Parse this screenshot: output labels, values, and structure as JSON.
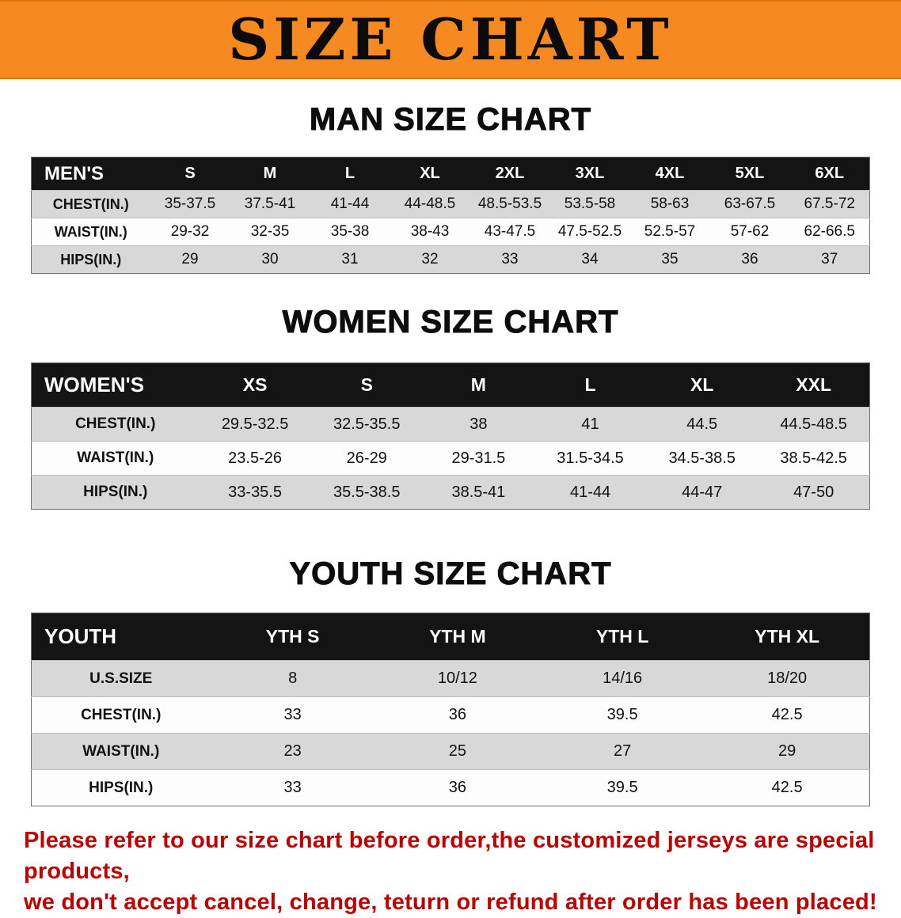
{
  "banner": {
    "title": "SIZE CHART"
  },
  "chart_data": [
    {
      "type": "table",
      "title": "MAN SIZE CHART",
      "corner": "MEN'S",
      "columns": [
        "S",
        "M",
        "L",
        "XL",
        "2XL",
        "3XL",
        "4XL",
        "5XL",
        "6XL"
      ],
      "rows": [
        {
          "label": "CHEST(IN.)",
          "values": [
            "35-37.5",
            "37.5-41",
            "41-44",
            "44-48.5",
            "48.5-53.5",
            "53.5-58",
            "58-63",
            "63-67.5",
            "67.5-72"
          ]
        },
        {
          "label": "WAIST(IN.)",
          "values": [
            "29-32",
            "32-35",
            "35-38",
            "38-43",
            "43-47.5",
            "47.5-52.5",
            "52.5-57",
            "57-62",
            "62-66.5"
          ]
        },
        {
          "label": "HIPS(IN.)",
          "values": [
            "29",
            "30",
            "31",
            "32",
            "33",
            "34",
            "35",
            "36",
            "37"
          ]
        }
      ]
    },
    {
      "type": "table",
      "title": "WOMEN SIZE CHART",
      "corner": "WOMEN'S",
      "columns": [
        "XS",
        "S",
        "M",
        "L",
        "XL",
        "XXL"
      ],
      "rows": [
        {
          "label": "CHEST(IN.)",
          "values": [
            "29.5-32.5",
            "32.5-35.5",
            "38",
            "41",
            "44.5",
            "44.5-48.5"
          ]
        },
        {
          "label": "WAIST(IN.)",
          "values": [
            "23.5-26",
            "26-29",
            "29-31.5",
            "31.5-34.5",
            "34.5-38.5",
            "38.5-42.5"
          ]
        },
        {
          "label": "HIPS(IN.)",
          "values": [
            "33-35.5",
            "35.5-38.5",
            "38.5-41",
            "41-44",
            "44-47",
            "47-50"
          ]
        }
      ]
    },
    {
      "type": "table",
      "title": "YOUTH SIZE CHART",
      "corner": "YOUTH",
      "columns": [
        "YTH S",
        "YTH M",
        "YTH L",
        "YTH XL"
      ],
      "rows": [
        {
          "label": "U.S.SIZE",
          "values": [
            "8",
            "10/12",
            "14/16",
            "18/20"
          ]
        },
        {
          "label": "CHEST(IN.)",
          "values": [
            "33",
            "36",
            "39.5",
            "42.5"
          ]
        },
        {
          "label": "WAIST(IN.)",
          "values": [
            "23",
            "25",
            "27",
            "29"
          ]
        },
        {
          "label": "HIPS(IN.)",
          "values": [
            "33",
            "36",
            "39.5",
            "42.5"
          ]
        }
      ]
    }
  ],
  "footer": {
    "line1": "Please refer to our size chart before order,the customized jerseys are special products,",
    "line2": "we don't accept cancel, change, teturn or refund after order has been placed!"
  },
  "colors": {
    "banner_bg": "#F6891F",
    "header_bg": "#141414",
    "row_alt": "#D8D8D8",
    "footer_text": "#C30000"
  }
}
